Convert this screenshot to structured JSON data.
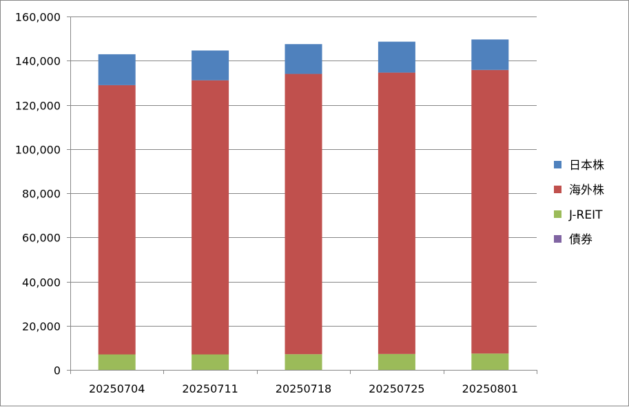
{
  "chart_data": {
    "type": "bar",
    "stacked": true,
    "categories": [
      "20250704",
      "20250711",
      "20250718",
      "20250725",
      "20250801"
    ],
    "series": [
      {
        "name": "債券",
        "color": "#8064a2",
        "values": [
          0,
          0,
          0,
          0,
          0
        ]
      },
      {
        "name": "J-REIT",
        "color": "#9bbb59",
        "values": [
          7000,
          7000,
          7100,
          7200,
          7400
        ]
      },
      {
        "name": "海外株",
        "color": "#c0504d",
        "values": [
          121900,
          124100,
          126900,
          127400,
          128400
        ]
      },
      {
        "name": "日本株",
        "color": "#4f81bd",
        "values": [
          14000,
          13500,
          13500,
          14000,
          13800
        ]
      }
    ],
    "legend_order": [
      "日本株",
      "海外株",
      "J-REIT",
      "債券"
    ],
    "y_ticks": [
      "0",
      "20,000",
      "40,000",
      "60,000",
      "80,000",
      "100,000",
      "120,000",
      "140,000",
      "160,000"
    ],
    "ylim": [
      0,
      160000
    ],
    "grid": true,
    "legend_position": "right",
    "title": "",
    "xlabel": "",
    "ylabel": ""
  }
}
